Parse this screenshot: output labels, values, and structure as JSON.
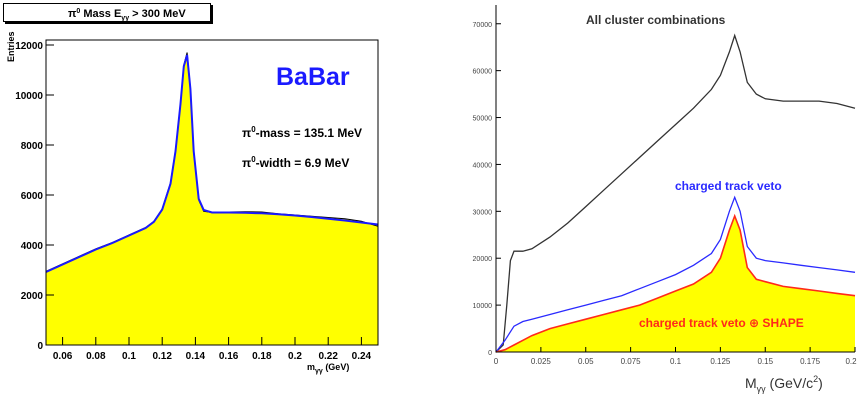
{
  "chart_data": [
    {
      "type": "bar",
      "title": "Mass E > 300 MeV",
      "title_parts": {
        "pi": "π",
        "pi_sup": "0",
        "text": " Mass E",
        "sub": "γγ",
        "rest": " > 300 MeV"
      },
      "ylabel": "Entries",
      "xlabel": "m_γγ (GeV)",
      "xlabel_parts": {
        "main": "m",
        "sub": "γγ",
        "unit": " (GeV)"
      },
      "xlim": [
        0.05,
        0.25
      ],
      "ylim": [
        0,
        12200
      ],
      "x_ticks": [
        "0.06",
        "0.08",
        "0.1",
        "0.12",
        "0.14",
        "0.16",
        "0.18",
        "0.2",
        "0.22",
        "0.24"
      ],
      "x_tick_values": [
        0.06,
        0.08,
        0.1,
        0.12,
        0.14,
        0.16,
        0.18,
        0.2,
        0.22,
        0.24
      ],
      "y_ticks": [
        "0",
        "2000",
        "4000",
        "6000",
        "8000",
        "10000",
        "12000"
      ],
      "y_tick_values": [
        0,
        2000,
        4000,
        6000,
        8000,
        10000,
        12000
      ],
      "brand": "BaBar",
      "annotations": [
        {
          "pi": "π",
          "sup": "0",
          "text": "-mass = 135.1 MeV"
        },
        {
          "pi": "π",
          "sup": "0",
          "text": "-width = 6.9 MeV"
        }
      ],
      "fill_color": "#ffff00",
      "fit_color": "#1a1aff",
      "histogram": {
        "x": [
          0.05,
          0.06,
          0.07,
          0.08,
          0.09,
          0.1,
          0.11,
          0.115,
          0.12,
          0.125,
          0.128,
          0.131,
          0.133,
          0.135,
          0.137,
          0.139,
          0.142,
          0.145,
          0.15,
          0.16,
          0.17,
          0.18,
          0.19,
          0.2,
          0.21,
          0.22,
          0.23,
          0.24,
          0.25
        ],
        "y": [
          2950,
          3250,
          3550,
          3850,
          4100,
          4400,
          4700,
          4950,
          5450,
          6500,
          7800,
          9700,
          11200,
          11700,
          10300,
          7800,
          5800,
          5350,
          5300,
          5320,
          5330,
          5320,
          5250,
          5200,
          5150,
          5100,
          5050,
          4950,
          4750
        ]
      },
      "fit": {
        "x": [
          0.05,
          0.06,
          0.07,
          0.08,
          0.09,
          0.1,
          0.11,
          0.115,
          0.12,
          0.125,
          0.128,
          0.131,
          0.133,
          0.135,
          0.137,
          0.139,
          0.142,
          0.145,
          0.15,
          0.16,
          0.17,
          0.18,
          0.19,
          0.2,
          0.21,
          0.22,
          0.23,
          0.24,
          0.25
        ],
        "y": [
          2920,
          3220,
          3520,
          3820,
          4080,
          4380,
          4680,
          4930,
          5420,
          6450,
          7750,
          9650,
          11150,
          11600,
          10250,
          7750,
          5850,
          5400,
          5300,
          5300,
          5290,
          5270,
          5230,
          5180,
          5120,
          5050,
          4980,
          4900,
          4820
        ]
      }
    },
    {
      "type": "line",
      "xlabel": "M_γγ (GeV/c²)",
      "xlabel_parts": {
        "main": "M",
        "sub": "γγ",
        "unit": " (GeV/c",
        "sup": "2",
        "close": ")"
      },
      "xlim": [
        0,
        0.2
      ],
      "ylim": [
        0,
        74000
      ],
      "x_ticks": [
        "0",
        "0.025",
        "0.05",
        "0.075",
        "0.1",
        "0.125",
        "0.15",
        "0.175",
        "0.2"
      ],
      "x_tick_values": [
        0,
        0.025,
        0.05,
        0.075,
        0.1,
        0.125,
        0.15,
        0.175,
        0.2
      ],
      "y_ticks": [
        "0",
        "10000",
        "20000",
        "30000",
        "40000",
        "50000",
        "60000",
        "70000"
      ],
      "y_tick_values": [
        0,
        10000,
        20000,
        30000,
        40000,
        50000,
        60000,
        70000
      ],
      "series": [
        {
          "name": "All cluster combinations",
          "color": "#333333",
          "x": [
            0,
            0.004,
            0.006,
            0.008,
            0.01,
            0.015,
            0.02,
            0.03,
            0.04,
            0.05,
            0.06,
            0.07,
            0.08,
            0.09,
            0.1,
            0.11,
            0.12,
            0.125,
            0.13,
            0.133,
            0.136,
            0.14,
            0.145,
            0.15,
            0.16,
            0.17,
            0.18,
            0.19,
            0.2
          ],
          "y": [
            0,
            1500,
            10000,
            19500,
            21500,
            21500,
            22000,
            24500,
            27500,
            31000,
            34500,
            38000,
            41500,
            45000,
            48500,
            52000,
            56000,
            59000,
            64000,
            67500,
            64000,
            57500,
            55000,
            54000,
            53500,
            53500,
            53500,
            53000,
            52000
          ]
        },
        {
          "name": "charged track veto",
          "color": "#2a2aff",
          "x": [
            0,
            0.005,
            0.01,
            0.015,
            0.02,
            0.03,
            0.04,
            0.05,
            0.06,
            0.07,
            0.08,
            0.09,
            0.1,
            0.11,
            0.12,
            0.125,
            0.13,
            0.133,
            0.136,
            0.14,
            0.145,
            0.15,
            0.16,
            0.17,
            0.18,
            0.19,
            0.2
          ],
          "y": [
            0,
            2500,
            5500,
            6500,
            7000,
            8000,
            9000,
            10000,
            11000,
            12000,
            13500,
            15000,
            16500,
            18500,
            21000,
            24000,
            30000,
            33000,
            30000,
            22500,
            20000,
            19500,
            19000,
            18500,
            18000,
            17500,
            17000
          ]
        },
        {
          "name": "charged track veto ⊕ SHAPE",
          "color": "#ff2a1a",
          "fill": "#ffff00",
          "x": [
            0,
            0.005,
            0.01,
            0.015,
            0.02,
            0.03,
            0.04,
            0.05,
            0.06,
            0.07,
            0.08,
            0.09,
            0.1,
            0.11,
            0.12,
            0.125,
            0.13,
            0.133,
            0.136,
            0.14,
            0.145,
            0.15,
            0.16,
            0.17,
            0.18,
            0.19,
            0.2
          ],
          "y": [
            0,
            500,
            1500,
            2500,
            3500,
            5000,
            6000,
            7000,
            8000,
            9000,
            10000,
            11500,
            13000,
            14500,
            17000,
            20000,
            26000,
            29000,
            26000,
            18000,
            15500,
            15000,
            14000,
            13500,
            13000,
            12500,
            12000
          ]
        }
      ]
    }
  ]
}
